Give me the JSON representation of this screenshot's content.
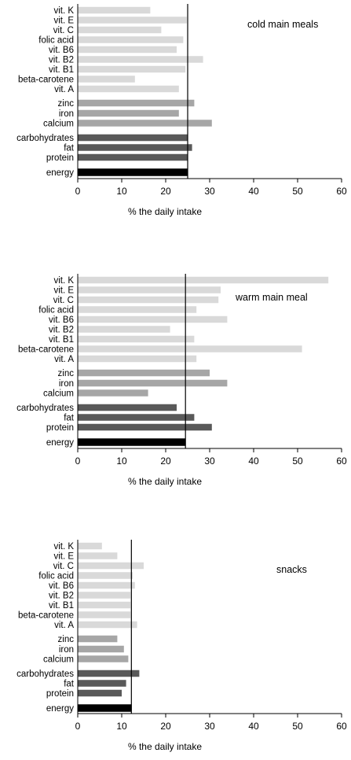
{
  "colors": {
    "vitamins": "#d9d9d9",
    "minerals": "#a6a6a6",
    "macronutrients": "#595959",
    "energy": "#000000"
  },
  "chart_data": [
    {
      "type": "bar",
      "orientation": "horizontal",
      "title": "cold main meals",
      "xlabel": "% the daily intake",
      "xlim": [
        0,
        60
      ],
      "xticks": [
        "0",
        "10",
        "20",
        "30",
        "40",
        "50",
        "60"
      ],
      "reference_line": 25,
      "categories": [
        "vit. K",
        "vit. E",
        "vit. C",
        "folic acid",
        "vit. B6",
        "vit. B2",
        "vit. B1",
        "beta-carotene",
        "vit. A",
        "zinc",
        "iron",
        "calcium",
        "carbohydrates",
        "fat",
        "protein",
        "energy"
      ],
      "groups": [
        "vitamins",
        "vitamins",
        "vitamins",
        "vitamins",
        "vitamins",
        "vitamins",
        "vitamins",
        "vitamins",
        "vitamins",
        "minerals",
        "minerals",
        "minerals",
        "macronutrients",
        "macronutrients",
        "macronutrients",
        "energy"
      ],
      "values": [
        16.5,
        24.8,
        19,
        24,
        22.5,
        28.5,
        24.5,
        13,
        23,
        26.5,
        23,
        30.5,
        25,
        26,
        25,
        25
      ]
    },
    {
      "type": "bar",
      "orientation": "horizontal",
      "title": "warm main meal",
      "xlabel": "% the daily intake",
      "xlim": [
        0,
        60
      ],
      "xticks": [
        "0",
        "10",
        "20",
        "30",
        "40",
        "50",
        "60"
      ],
      "reference_line": 24.5,
      "categories": [
        "vit. K",
        "vit. E",
        "vit. C",
        "folic acid",
        "vit. B6",
        "vit. B2",
        "vit. B1",
        "beta-carotene",
        "vit. A",
        "zinc",
        "iron",
        "calcium",
        "carbohydrates",
        "fat",
        "protein",
        "energy"
      ],
      "groups": [
        "vitamins",
        "vitamins",
        "vitamins",
        "vitamins",
        "vitamins",
        "vitamins",
        "vitamins",
        "vitamins",
        "vitamins",
        "minerals",
        "minerals",
        "minerals",
        "macronutrients",
        "macronutrients",
        "macronutrients",
        "energy"
      ],
      "values": [
        57,
        32.5,
        32,
        27,
        34,
        21,
        26.5,
        51,
        27,
        30,
        34,
        16,
        22.5,
        26.5,
        30.5,
        24.5
      ]
    },
    {
      "type": "bar",
      "orientation": "horizontal",
      "title": "snacks",
      "xlabel": "% the daily intake",
      "xlim": [
        0,
        60
      ],
      "xticks": [
        "0",
        "10",
        "20",
        "30",
        "40",
        "50",
        "60"
      ],
      "reference_line": 12.2,
      "categories": [
        "vit. K",
        "vit. E",
        "vit. C",
        "folic acid",
        "vit. B6",
        "vit. B2",
        "vit. B1",
        "beta-carotene",
        "vit. A",
        "zinc",
        "iron",
        "calcium",
        "carbohydrates",
        "fat",
        "protein",
        "energy"
      ],
      "groups": [
        "vitamins",
        "vitamins",
        "vitamins",
        "vitamins",
        "vitamins",
        "vitamins",
        "vitamins",
        "vitamins",
        "vitamins",
        "minerals",
        "minerals",
        "minerals",
        "macronutrients",
        "macronutrients",
        "macronutrients",
        "energy"
      ],
      "values": [
        5.5,
        9,
        15,
        12.5,
        13,
        12,
        12,
        12,
        13.5,
        9,
        10.5,
        11.5,
        14,
        11,
        10,
        12.2
      ]
    }
  ]
}
